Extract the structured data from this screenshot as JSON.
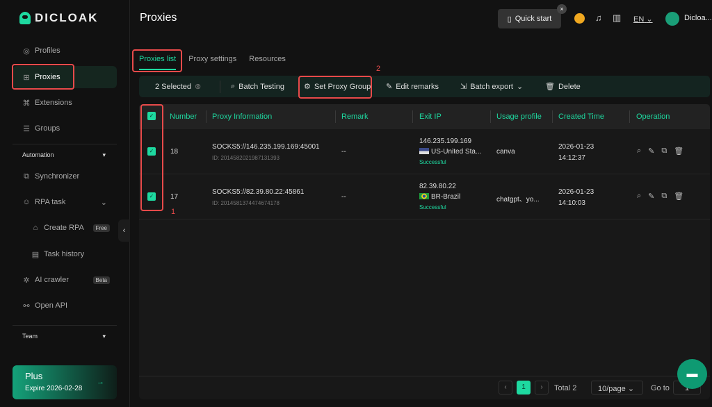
{
  "brand": "DICLOAK",
  "sidebar": {
    "items": [
      {
        "label": "Profiles",
        "icon": "chrome-icon"
      },
      {
        "label": "Proxies",
        "icon": "network-icon",
        "active": true
      },
      {
        "label": "Extensions",
        "icon": "command-icon"
      },
      {
        "label": "Groups",
        "icon": "groups-icon"
      }
    ],
    "automation": "Automation",
    "auto_items": [
      {
        "label": "Synchronizer"
      },
      {
        "label": "RPA task"
      },
      {
        "label": "Create RPA",
        "badge": "Free"
      },
      {
        "label": "Task history"
      },
      {
        "label": "AI crawler",
        "badge": "Beta"
      },
      {
        "label": "Open API"
      }
    ],
    "team": "Team",
    "plan": {
      "name": "Plus",
      "expire": "Expire 2026-02-28"
    }
  },
  "header": {
    "title": "Proxies",
    "quick_start": "Quick start",
    "lang": "EN",
    "user": "Dicloa..."
  },
  "tabs": [
    "Proxies list",
    "Proxy settings",
    "Resources"
  ],
  "toolbar": {
    "selected": "2 Selected",
    "batch_testing": "Batch Testing",
    "set_group": "Set Proxy Group",
    "edit_remarks": "Edit remarks",
    "batch_export": "Batch export",
    "delete": "Delete"
  },
  "table": {
    "headers": [
      "Number",
      "Proxy Information",
      "Remark",
      "Exit IP",
      "Usage profile",
      "Created Time",
      "Operation"
    ],
    "rows": [
      {
        "number": "18",
        "proxy": "SOCKS5://146.235.199.169:45001",
        "id": "ID: 2014582021987131393",
        "remark": "--",
        "ip": "146.235.199.169",
        "country": "US-United Sta...",
        "status": "Successful",
        "usage": "canva",
        "date": "2026-01-23",
        "time": "14:12:37"
      },
      {
        "number": "17",
        "proxy": "SOCKS5://82.39.80.22:45861",
        "id": "ID: 2014581374474674178",
        "remark": "--",
        "ip": "82.39.80.22",
        "country": "BR-Brazil",
        "status": "Successful",
        "usage": "chatgpt、yo...",
        "date": "2026-01-23",
        "time": "14:10:03"
      }
    ]
  },
  "pagination": {
    "page": "1",
    "total": "Total 2",
    "per_page": "10/page",
    "goto": "Go to",
    "goto_value": "1"
  },
  "annotations": [
    "1",
    "2"
  ],
  "colors": {
    "accent": "#1ed9a0",
    "annotation": "#e84a4a"
  }
}
